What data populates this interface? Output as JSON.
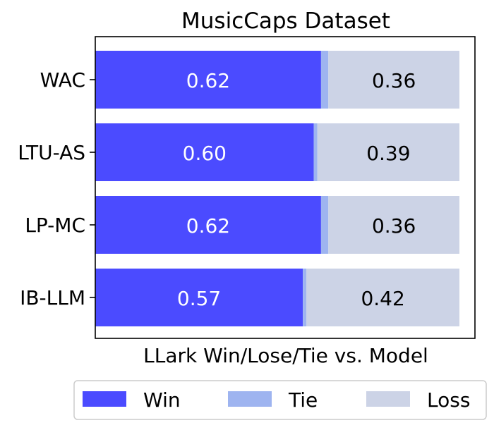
{
  "chart_data": {
    "type": "bar",
    "orientation": "horizontal",
    "stacked": true,
    "title": "MusicCaps Dataset",
    "xlabel": "LLark Win/Lose/Tie vs. Model",
    "ylabel": "",
    "xlim": [
      0,
      1
    ],
    "grid": false,
    "legend_position": "bottom",
    "categories": [
      "WAC",
      "LTU-AS",
      "LP-MC",
      "IB-LLM"
    ],
    "series": [
      {
        "name": "Win",
        "color": "#4b4bff",
        "values": [
          0.62,
          0.6,
          0.62,
          0.57
        ],
        "labels": [
          "0.62",
          "0.60",
          "0.62",
          "0.57"
        ]
      },
      {
        "name": "Tie",
        "color": "#9eb4f0",
        "values": [
          0.02,
          0.01,
          0.02,
          0.01
        ]
      },
      {
        "name": "Loss",
        "color": "#ccd3e6",
        "values": [
          0.36,
          0.39,
          0.36,
          0.42
        ],
        "labels": [
          "0.36",
          "0.39",
          "0.36",
          "0.42"
        ]
      }
    ]
  }
}
